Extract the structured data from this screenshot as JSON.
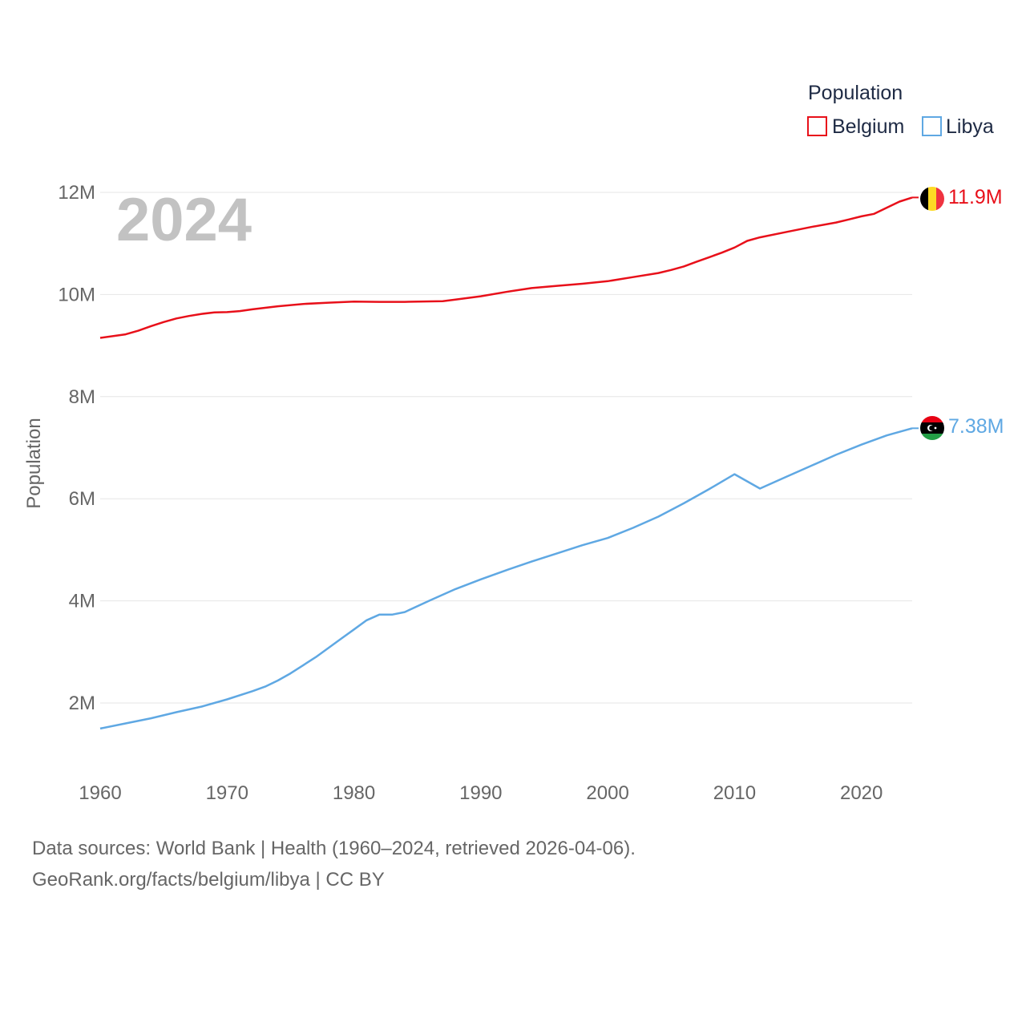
{
  "chart_data": {
    "type": "line",
    "title": "",
    "xlabel": "",
    "ylabel": "Population",
    "xlim": [
      1960,
      2024
    ],
    "ylim": [
      1000000,
      12000000
    ],
    "yticks": [
      2000000,
      4000000,
      6000000,
      8000000,
      10000000,
      12000000
    ],
    "ytick_labels": [
      "2M",
      "4M",
      "6M",
      "8M",
      "10M",
      "12M"
    ],
    "xticks": [
      1960,
      1970,
      1980,
      1990,
      2000,
      2010,
      2020
    ],
    "xtick_labels": [
      "1960",
      "1970",
      "1980",
      "1990",
      "2000",
      "2010",
      "2020"
    ],
    "year_label": "2024",
    "legend": {
      "title": "Population",
      "position": "top-right"
    },
    "series": [
      {
        "name": "Belgium",
        "color": "#e8101a",
        "end_label": "11.9M",
        "flag": "belgium-flag-icon",
        "x": [
          1960,
          1962,
          1963,
          1964,
          1965,
          1966,
          1967,
          1968,
          1969,
          1970,
          1971,
          1972,
          1974,
          1976,
          1978,
          1980,
          1982,
          1984,
          1986,
          1987,
          1988,
          1990,
          1992,
          1994,
          1996,
          1998,
          2000,
          2002,
          2004,
          2005,
          2006,
          2007,
          2008,
          2009,
          2010,
          2011,
          2012,
          2014,
          2016,
          2018,
          2019,
          2020,
          2021,
          2022,
          2023,
          2024
        ],
        "values": [
          9150000,
          9220000,
          9290000,
          9380000,
          9460000,
          9530000,
          9580000,
          9620000,
          9650000,
          9655000,
          9675000,
          9710000,
          9770000,
          9815000,
          9840000,
          9860000,
          9855000,
          9855000,
          9865000,
          9870000,
          9900000,
          9965000,
          10050000,
          10125000,
          10170000,
          10210000,
          10260000,
          10340000,
          10420000,
          10480000,
          10550000,
          10640000,
          10730000,
          10820000,
          10920000,
          11050000,
          11120000,
          11220000,
          11320000,
          11410000,
          11470000,
          11530000,
          11580000,
          11700000,
          11820000,
          11900000
        ]
      },
      {
        "name": "Libya",
        "color": "#5fa8e3",
        "end_label": "7.38M",
        "flag": "libya-flag-icon",
        "x": [
          1960,
          1962,
          1964,
          1966,
          1968,
          1970,
          1972,
          1973,
          1974,
          1975,
          1976,
          1977,
          1978,
          1979,
          1980,
          1981,
          1982,
          1983,
          1984,
          1986,
          1988,
          1990,
          1992,
          1994,
          1996,
          1998,
          2000,
          2002,
          2004,
          2006,
          2008,
          2010,
          2012,
          2014,
          2016,
          2018,
          2020,
          2022,
          2024
        ],
        "values": [
          1500000,
          1600000,
          1700000,
          1820000,
          1930000,
          2070000,
          2230000,
          2320000,
          2440000,
          2580000,
          2740000,
          2900000,
          3080000,
          3260000,
          3440000,
          3620000,
          3730000,
          3730000,
          3780000,
          4010000,
          4230000,
          4420000,
          4600000,
          4770000,
          4930000,
          5090000,
          5230000,
          5430000,
          5650000,
          5910000,
          6190000,
          6480000,
          6200000,
          6420000,
          6640000,
          6860000,
          7060000,
          7240000,
          7380000
        ]
      }
    ]
  },
  "footer": {
    "line1": "Data sources: World Bank | Health (1960–2024, retrieved 2026-04-06).",
    "line2": "GeoRank.org/facts/belgium/libya | CC BY"
  }
}
